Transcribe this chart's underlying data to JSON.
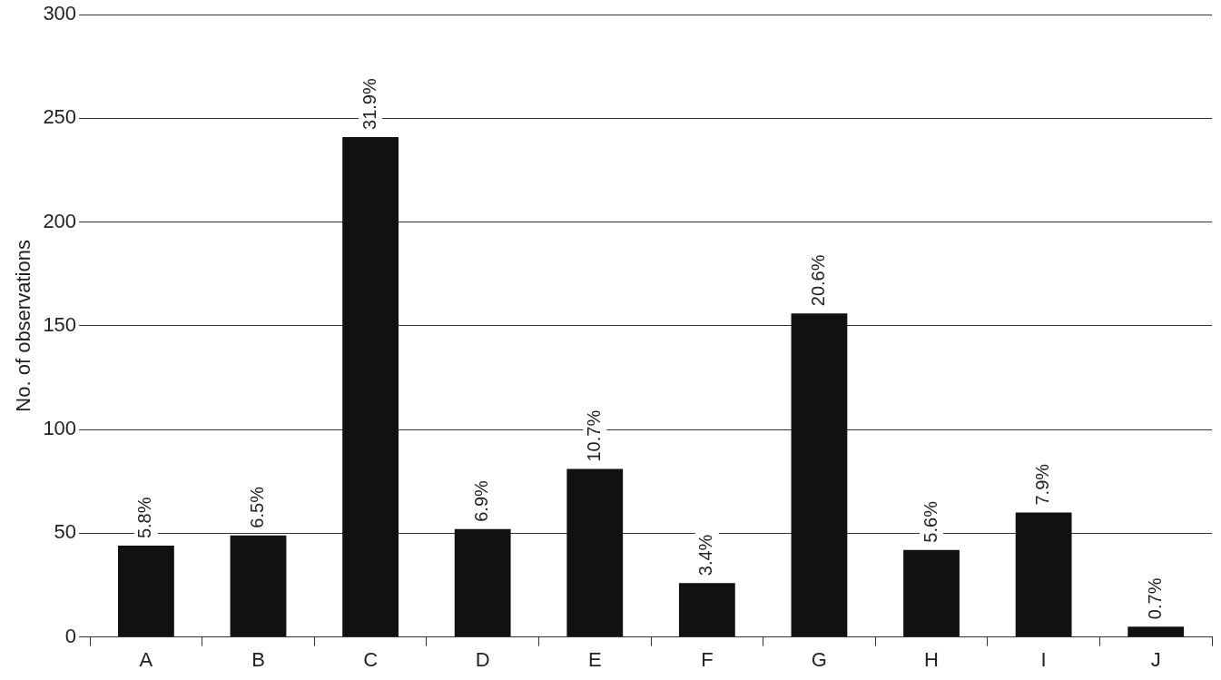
{
  "chart_data": {
    "type": "bar",
    "ylabel": "No. of observations",
    "categories": [
      "A",
      "B",
      "C",
      "D",
      "E",
      "F",
      "G",
      "H",
      "I",
      "J"
    ],
    "values": [
      44,
      49,
      241,
      52,
      81,
      26,
      156,
      42,
      60,
      5
    ],
    "annotations": [
      {
        "text": "5.8%",
        "x": "A",
        "y": 44
      },
      {
        "text": "6.5%",
        "x": "B",
        "y": 49
      },
      {
        "text": "31.9%",
        "x": "C",
        "y": 241
      },
      {
        "text": "6.9%",
        "x": "D",
        "y": 52
      },
      {
        "text": "10.7%",
        "x": "E",
        "y": 81
      },
      {
        "text": "3.4%",
        "x": "F",
        "y": 26
      },
      {
        "text": "20.6%",
        "x": "G",
        "y": 156
      },
      {
        "text": "5.6%",
        "x": "H",
        "y": 42
      },
      {
        "text": "7.9%",
        "x": "I",
        "y": 60
      },
      {
        "text": "0.7%",
        "x": "J",
        "y": 5
      }
    ],
    "color": "#111111",
    "ylim": [
      0,
      300
    ],
    "yticks": [
      0,
      50,
      100,
      150,
      200,
      250,
      300
    ],
    "grid": "y",
    "legend": false
  }
}
